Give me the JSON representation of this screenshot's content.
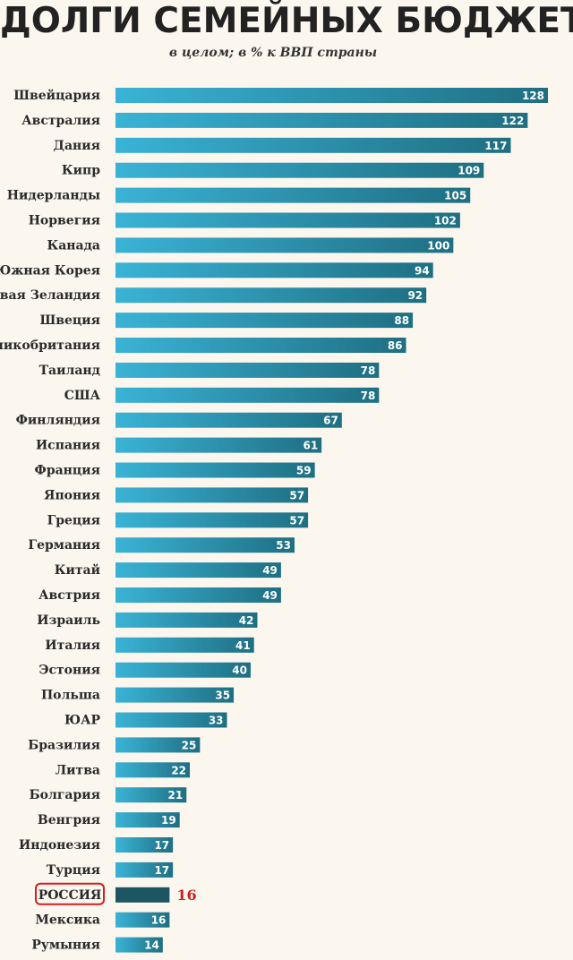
{
  "chart_data": {
    "type": "bar",
    "orientation": "horizontal",
    "title": "ДОЛГИ СЕМЕЙНЫХ БЮДЖЕТОВ",
    "subtitle": "в целом; в % к ВВП страны",
    "categories": [
      "Швейцария",
      "Австралия",
      "Дания",
      "Кипр",
      "Нидерланды",
      "Норвегия",
      "Канада",
      "Южная Корея",
      "Новая Зеландия",
      "Швеция",
      "Великобритания",
      "Таиланд",
      "США",
      "Финляндия",
      "Испания",
      "Франция",
      "Япония",
      "Греция",
      "Германия",
      "Китай",
      "Австрия",
      "Израиль",
      "Италия",
      "Эстония",
      "Польша",
      "ЮАР",
      "Бразилия",
      "Литва",
      "Болгария",
      "Венгрия",
      "Индонезия",
      "Турция",
      "РОССИЯ",
      "Мексика",
      "Румыния"
    ],
    "values": [
      128,
      122,
      117,
      109,
      105,
      102,
      100,
      94,
      92,
      88,
      86,
      78,
      78,
      67,
      61,
      59,
      57,
      57,
      53,
      49,
      49,
      42,
      41,
      40,
      35,
      33,
      25,
      22,
      21,
      19,
      17,
      17,
      16,
      16,
      14
    ],
    "highlight": "РОССИЯ",
    "xlim": [
      0,
      130
    ],
    "grid": false,
    "legend": "none",
    "colors": {
      "bar_start": "#3ab3d6",
      "bar_end": "#1f6f82",
      "highlight_bar": "#1c5663",
      "highlight_text": "#d11f1f",
      "background": "#fbf7ef"
    }
  }
}
